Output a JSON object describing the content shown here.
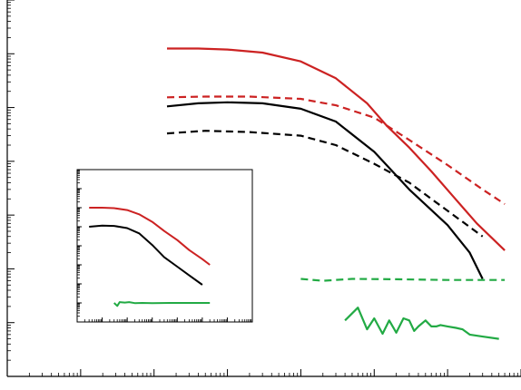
{
  "chart_data": [
    {
      "panel": "main",
      "type": "line",
      "x_scale": "log",
      "y_scale": "log",
      "grid": false,
      "xlim": [
        0.0001,
        1000
      ],
      "ylim": [
        1e-07,
        1
      ],
      "series": [
        {
          "color": "#cc2222",
          "dash": "solid",
          "x": [
            0.015,
            0.04,
            0.1,
            0.3,
            1,
            3,
            8,
            15,
            30,
            60,
            120,
            250,
            600
          ],
          "y": [
            0.125,
            0.125,
            0.12,
            0.105,
            0.072,
            0.035,
            0.012,
            0.0045,
            0.0018,
            0.00065,
            0.00022,
            7e-05,
            2.2e-05
          ]
        },
        {
          "color": "#cc2222",
          "dash": "dashed",
          "x": [
            0.015,
            0.05,
            0.2,
            1,
            3,
            10,
            30,
            100,
            300,
            600
          ],
          "y": [
            0.0155,
            0.016,
            0.016,
            0.0145,
            0.011,
            0.0065,
            0.0025,
            0.00085,
            0.0003,
            0.00016
          ]
        },
        {
          "color": "#000000",
          "dash": "solid",
          "x": [
            0.015,
            0.04,
            0.1,
            0.3,
            1,
            3,
            10,
            30,
            100,
            200,
            300
          ],
          "y": [
            0.0105,
            0.012,
            0.0125,
            0.012,
            0.0095,
            0.0055,
            0.0015,
            0.0003,
            6.5e-05,
            2e-05,
            6.5e-06
          ]
        },
        {
          "color": "#000000",
          "dash": "dashed",
          "x": [
            0.015,
            0.05,
            0.2,
            1,
            3,
            10,
            30,
            100,
            300
          ],
          "y": [
            0.0033,
            0.0037,
            0.0035,
            0.003,
            0.002,
            0.0009,
            0.0004,
            0.00012,
            4e-05
          ]
        },
        {
          "color": "#22aa44",
          "dash": "dashed",
          "x": [
            1,
            2,
            5,
            20,
            100,
            600
          ],
          "y": [
            6.5e-06,
            6e-06,
            6.5e-06,
            6.4e-06,
            6.2e-06,
            6.2e-06
          ]
        },
        {
          "color": "#22aa44",
          "dash": "solid",
          "x": [
            4,
            6,
            8,
            10,
            13,
            16,
            20,
            25,
            30,
            35,
            40,
            50,
            60,
            70,
            80,
            100,
            130,
            160,
            200,
            300,
            500
          ],
          "y": [
            1.1e-06,
            1.9e-06,
            7.5e-07,
            1.2e-06,
            6.2e-07,
            1.1e-06,
            6.5e-07,
            1.2e-06,
            1.1e-06,
            7e-07,
            8.5e-07,
            1.1e-06,
            8.5e-07,
            8.5e-07,
            9e-07,
            8.5e-07,
            8e-07,
            7.5e-07,
            6e-07,
            5.5e-07,
            5e-07
          ]
        }
      ]
    },
    {
      "panel": "inset",
      "type": "line",
      "x_scale": "log",
      "y_scale": "log",
      "grid": false,
      "xlim": [
        0.0001,
        1000
      ],
      "ylim": [
        1e-06,
        100
      ],
      "series": [
        {
          "color": "#cc2222",
          "dash": "solid",
          "x": [
            0.0003,
            0.001,
            0.003,
            0.01,
            0.03,
            0.1,
            0.3,
            1,
            3,
            10,
            20
          ],
          "y": [
            1,
            1,
            0.95,
            0.75,
            0.45,
            0.18,
            0.06,
            0.02,
            0.006,
            0.002,
            0.001
          ]
        },
        {
          "color": "#000000",
          "dash": "solid",
          "x": [
            0.0003,
            0.001,
            0.003,
            0.01,
            0.03,
            0.1,
            0.3,
            1,
            3,
            10
          ],
          "y": [
            0.1,
            0.115,
            0.11,
            0.085,
            0.045,
            0.011,
            0.0025,
            0.0008,
            0.00028,
            9e-05
          ]
        },
        {
          "color": "#22aa44",
          "dash": "solid",
          "x": [
            0.003,
            0.004,
            0.005,
            0.008,
            0.012,
            0.02,
            0.04,
            0.1,
            0.5,
            2,
            20
          ],
          "y": [
            1e-05,
            7e-06,
            1.1e-05,
            1.05e-05,
            1.1e-05,
            9.8e-06,
            1e-05,
            9.8e-06,
            1e-05,
            1e-05,
            1e-05
          ]
        }
      ]
    }
  ]
}
